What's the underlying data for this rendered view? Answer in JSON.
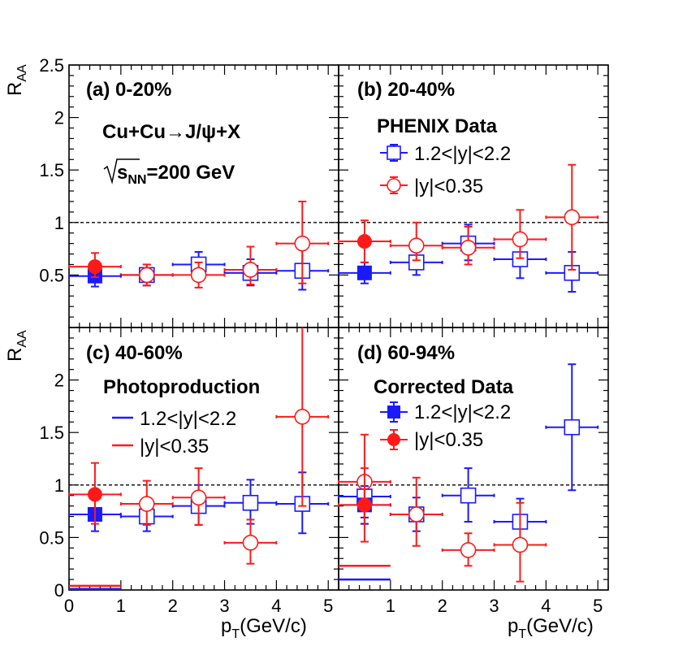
{
  "colors": {
    "blue": "#1a1aff",
    "red": "#ff1a1a",
    "axis": "#000000"
  },
  "axes": {
    "x_title": "p",
    "x_title_sub": "T",
    "x_title_unit": "(GeV/c)",
    "y_title": "R",
    "y_title_sub": "AA",
    "x_range": [
      0,
      5.2
    ],
    "y_range_top": [
      0,
      2.5
    ],
    "y_range_bottom": [
      0,
      2.5
    ],
    "x_ticks": [
      "0",
      "1",
      "2",
      "3",
      "4",
      "5"
    ],
    "y_ticks_top": [
      "0.5",
      "1",
      "1.5",
      "2",
      "2.5"
    ],
    "y_ticks_bottom": [
      "0",
      "0.5",
      "1",
      "1.5",
      "2"
    ]
  },
  "labels": {
    "panel_a": "(a) 0-20%",
    "panel_b": "(b) 20-40%",
    "panel_c": "(c) 40-60%",
    "panel_d": "(d) 60-94%",
    "reaction": "Cu+Cu→J/ψ+X",
    "energy_rest": "=200 GeV",
    "energy_s": "s",
    "energy_sub": "NN",
    "legend_b_title": "PHENIX Data",
    "legend_c_title": "Photoproduction",
    "legend_d_title": "Corrected Data",
    "fwd": "1.2<|y|<2.2",
    "mid": "|y|<0.35"
  },
  "chart_data": [
    {
      "panel": "a",
      "type": "scatter",
      "title": "(a) 0-20%",
      "xlabel": "pT(GeV/c)",
      "ylabel": "RAA",
      "xlim": [
        0,
        5.2
      ],
      "ylim": [
        0,
        2.5
      ],
      "reference_line": 1,
      "series": [
        {
          "name": "1.2<|y|<2.2 filled",
          "color": "blue",
          "marker": "filled-square",
          "points": [
            {
              "x": 0.5,
              "y": 0.49,
              "ex": 0.5,
              "eyl": 0.1,
              "eyh": 0.1
            }
          ]
        },
        {
          "name": "|y|<0.35 filled",
          "color": "red",
          "marker": "filled-circle",
          "points": [
            {
              "x": 0.5,
              "y": 0.58,
              "ex": 0.5,
              "eyl": 0.1,
              "eyh": 0.13
            }
          ]
        },
        {
          "name": "1.2<|y|<2.2",
          "color": "blue",
          "marker": "open-square",
          "points": [
            {
              "x": 1.5,
              "y": 0.5,
              "ex": 0.5,
              "eyl": 0.1,
              "eyh": 0.1
            },
            {
              "x": 2.5,
              "y": 0.6,
              "ex": 0.5,
              "eyl": 0.12,
              "eyh": 0.12
            },
            {
              "x": 3.5,
              "y": 0.52,
              "ex": 0.5,
              "eyl": 0.12,
              "eyh": 0.13
            },
            {
              "x": 4.5,
              "y": 0.54,
              "ex": 0.5,
              "eyl": 0.18,
              "eyh": 0.2
            }
          ]
        },
        {
          "name": "|y|<0.35",
          "color": "red",
          "marker": "open-circle",
          "points": [
            {
              "x": 1.5,
              "y": 0.5,
              "ex": 0.5,
              "eyl": 0.1,
              "eyh": 0.1
            },
            {
              "x": 2.5,
              "y": 0.5,
              "ex": 0.5,
              "eyl": 0.12,
              "eyh": 0.12
            },
            {
              "x": 3.5,
              "y": 0.55,
              "ex": 0.5,
              "eyl": 0.14,
              "eyh": 0.22
            },
            {
              "x": 4.5,
              "y": 0.8,
              "ex": 0.5,
              "eyl": 0.38,
              "eyh": 0.4
            }
          ]
        }
      ]
    },
    {
      "panel": "b",
      "type": "scatter",
      "title": "(b) 20-40%",
      "xlabel": "pT(GeV/c)",
      "ylabel": "RAA",
      "xlim": [
        0,
        5.2
      ],
      "ylim": [
        0,
        2.5
      ],
      "reference_line": 1,
      "series": [
        {
          "name": "1.2<|y|<2.2 filled",
          "color": "blue",
          "marker": "filled-square",
          "points": [
            {
              "x": 0.5,
              "y": 0.52,
              "ex": 0.5,
              "eyl": 0.1,
              "eyh": 0.1
            }
          ]
        },
        {
          "name": "|y|<0.35 filled",
          "color": "red",
          "marker": "filled-circle",
          "points": [
            {
              "x": 0.5,
              "y": 0.82,
              "ex": 0.5,
              "eyl": 0.2,
              "eyh": 0.2
            }
          ]
        },
        {
          "name": "1.2<|y|<2.2",
          "color": "blue",
          "marker": "open-square",
          "points": [
            {
              "x": 1.5,
              "y": 0.62,
              "ex": 0.5,
              "eyl": 0.12,
              "eyh": 0.12
            },
            {
              "x": 2.5,
              "y": 0.8,
              "ex": 0.5,
              "eyl": 0.16,
              "eyh": 0.18
            },
            {
              "x": 3.5,
              "y": 0.65,
              "ex": 0.5,
              "eyl": 0.18,
              "eyh": 0.2
            },
            {
              "x": 4.5,
              "y": 0.52,
              "ex": 0.5,
              "eyl": 0.18,
              "eyh": 0.2
            }
          ]
        },
        {
          "name": "|y|<0.35",
          "color": "red",
          "marker": "open-circle",
          "points": [
            {
              "x": 1.5,
              "y": 0.78,
              "ex": 0.5,
              "eyl": 0.14,
              "eyh": 0.22
            },
            {
              "x": 2.5,
              "y": 0.76,
              "ex": 0.5,
              "eyl": 0.16,
              "eyh": 0.2
            },
            {
              "x": 3.5,
              "y": 0.84,
              "ex": 0.5,
              "eyl": 0.18,
              "eyh": 0.28
            },
            {
              "x": 4.5,
              "y": 1.05,
              "ex": 0.5,
              "eyl": 0.5,
              "eyh": 0.5
            }
          ]
        }
      ]
    },
    {
      "panel": "c",
      "type": "scatter",
      "title": "(c) 40-60%",
      "xlabel": "pT(GeV/c)",
      "ylabel": "RAA",
      "xlim": [
        0,
        5.2
      ],
      "ylim": [
        0,
        2.5
      ],
      "reference_line": 1,
      "series": [
        {
          "name": "1.2<|y|<2.2 filled",
          "color": "blue",
          "marker": "filled-square",
          "points": [
            {
              "x": 0.5,
              "y": 0.72,
              "ex": 0.5,
              "eyl": 0.16,
              "eyh": 0.16
            }
          ]
        },
        {
          "name": "|y|<0.35 filled",
          "color": "red",
          "marker": "filled-circle",
          "points": [
            {
              "x": 0.5,
              "y": 0.91,
              "ex": 0.5,
              "eyl": 0.28,
              "eyh": 0.3
            }
          ]
        },
        {
          "name": "1.2<|y|<2.2",
          "color": "blue",
          "marker": "open-square",
          "points": [
            {
              "x": 1.5,
              "y": 0.7,
              "ex": 0.5,
              "eyl": 0.14,
              "eyh": 0.14
            },
            {
              "x": 2.5,
              "y": 0.8,
              "ex": 0.5,
              "eyl": 0.18,
              "eyh": 0.2
            },
            {
              "x": 3.5,
              "y": 0.83,
              "ex": 0.5,
              "eyl": 0.2,
              "eyh": 0.22
            },
            {
              "x": 4.5,
              "y": 0.82,
              "ex": 0.5,
              "eyl": 0.28,
              "eyh": 0.3
            }
          ]
        },
        {
          "name": "|y|<0.35",
          "color": "red",
          "marker": "open-circle",
          "points": [
            {
              "x": 1.5,
              "y": 0.82,
              "ex": 0.5,
              "eyl": 0.2,
              "eyh": 0.22
            },
            {
              "x": 2.5,
              "y": 0.88,
              "ex": 0.5,
              "eyl": 0.26,
              "eyh": 0.28
            },
            {
              "x": 3.5,
              "y": 0.45,
              "ex": 0.5,
              "eyl": 0.2,
              "eyh": 0.22
            },
            {
              "x": 4.5,
              "y": 1.65,
              "ex": 0.5,
              "eyl": 0.85,
              "eyh": 0.85
            }
          ]
        },
        {
          "name": "1.2<|y|<2.2 photoproduction",
          "color": "blue",
          "marker": "line",
          "points": [
            {
              "x": 0.5,
              "y": 0.01,
              "ex": 0.5,
              "eyl": 0,
              "eyh": 0
            }
          ]
        },
        {
          "name": "|y|<0.35 photoproduction",
          "color": "red",
          "marker": "line",
          "points": [
            {
              "x": 0.5,
              "y": 0.04,
              "ex": 0.5,
              "eyl": 0,
              "eyh": 0
            }
          ]
        }
      ]
    },
    {
      "panel": "d",
      "type": "scatter",
      "title": "(d) 60-94%",
      "xlabel": "pT(GeV/c)",
      "ylabel": "RAA",
      "xlim": [
        0,
        5.2
      ],
      "ylim": [
        0,
        2.5
      ],
      "reference_line": 1,
      "series": [
        {
          "name": "1.2<|y|<2.2 filled",
          "color": "blue",
          "marker": "filled-square",
          "points": [
            {
              "x": 0.5,
              "y": 0.81,
              "ex": 0.5,
              "eyl": 0.18,
              "eyh": 0.18
            }
          ]
        },
        {
          "name": "|y|<0.35 filled",
          "color": "red",
          "marker": "filled-circle",
          "points": [
            {
              "x": 0.5,
              "y": 0.81,
              "ex": 0.5,
              "eyl": 0.35,
              "eyh": 0.35
            }
          ]
        },
        {
          "name": "1.2<|y|<2.2",
          "color": "blue",
          "marker": "open-square",
          "points": [
            {
              "x": 0.5,
              "y": 0.89,
              "ex": 0.5,
              "eyl": 0.2,
              "eyh": 0.2
            },
            {
              "x": 1.5,
              "y": 0.72,
              "ex": 0.5,
              "eyl": 0.16,
              "eyh": 0.16
            },
            {
              "x": 2.5,
              "y": 0.9,
              "ex": 0.5,
              "eyl": 0.25,
              "eyh": 0.26
            },
            {
              "x": 3.5,
              "y": 0.65,
              "ex": 0.5,
              "eyl": 0.2,
              "eyh": 0.22
            },
            {
              "x": 4.5,
              "y": 1.55,
              "ex": 0.5,
              "eyl": 0.6,
              "eyh": 0.6
            }
          ]
        },
        {
          "name": "|y|<0.35",
          "color": "red",
          "marker": "open-circle",
          "points": [
            {
              "x": 0.5,
              "y": 1.03,
              "ex": 0.5,
              "eyl": 0.4,
              "eyh": 0.45
            },
            {
              "x": 1.5,
              "y": 0.72,
              "ex": 0.5,
              "eyl": 0.3,
              "eyh": 0.35
            },
            {
              "x": 2.5,
              "y": 0.38,
              "ex": 0.5,
              "eyl": 0.15,
              "eyh": 0.16
            },
            {
              "x": 3.5,
              "y": 0.43,
              "ex": 0.5,
              "eyl": 0.35,
              "eyh": 0.4
            }
          ]
        },
        {
          "name": "1.2<|y|<2.2 photoproduction",
          "color": "blue",
          "marker": "line",
          "points": [
            {
              "x": 0.5,
              "y": 0.1,
              "ex": 0.5,
              "eyl": 0,
              "eyh": 0
            }
          ]
        },
        {
          "name": "|y|<0.35 photoproduction",
          "color": "red",
          "marker": "line",
          "points": [
            {
              "x": 0.5,
              "y": 0.23,
              "ex": 0.5,
              "eyl": 0,
              "eyh": 0
            }
          ]
        }
      ]
    }
  ]
}
